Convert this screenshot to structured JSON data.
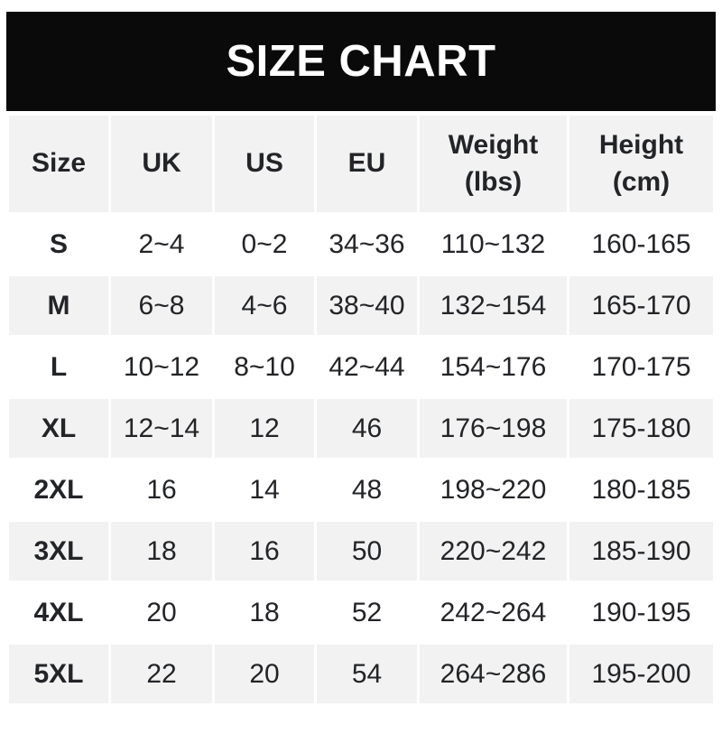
{
  "banner": {
    "title": "SIZE CHART"
  },
  "colors": {
    "banner_bg": "#0a0a0a",
    "banner_text": "#ffffff",
    "alt_row_bg": "#f2f2f2",
    "text": "#232427",
    "page_bg": "#ffffff"
  },
  "table": {
    "display_headers": [
      "Size",
      "UK",
      "US",
      "EU",
      "Weight\n(lbs)",
      "Height\n(cm)"
    ]
  },
  "chart_data": {
    "type": "table",
    "title": "SIZE CHART",
    "columns": [
      "Size",
      "UK",
      "US",
      "EU",
      "Weight (lbs)",
      "Height (cm)"
    ],
    "rows": [
      [
        "S",
        "2~4",
        "0~2",
        "34~36",
        "110~132",
        "160-165"
      ],
      [
        "M",
        "6~8",
        "4~6",
        "38~40",
        "132~154",
        "165-170"
      ],
      [
        "L",
        "10~12",
        "8~10",
        "42~44",
        "154~176",
        "170-175"
      ],
      [
        "XL",
        "12~14",
        "12",
        "46",
        "176~198",
        "175-180"
      ],
      [
        "2XL",
        "16",
        "14",
        "48",
        "198~220",
        "180-185"
      ],
      [
        "3XL",
        "18",
        "16",
        "50",
        "220~242",
        "185-190"
      ],
      [
        "4XL",
        "20",
        "18",
        "52",
        "242~264",
        "190-195"
      ],
      [
        "5XL",
        "22",
        "20",
        "54",
        "264~286",
        "195-200"
      ]
    ],
    "layout_hints": {
      "header_row_background": "#f2f2f2",
      "alternating_rows": "even data rows gray (#f2f2f2), odd white",
      "range_separator_weight": "~",
      "range_separator_height": "-"
    }
  }
}
